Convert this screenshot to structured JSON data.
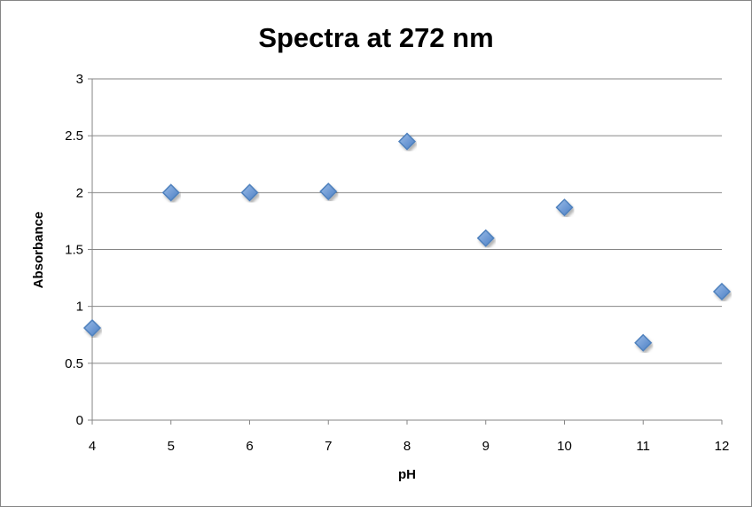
{
  "chart_data": {
    "type": "scatter",
    "title": "Spectra at 272 nm",
    "xlabel": "pH",
    "ylabel": "Absorbance",
    "xlim": [
      4,
      12
    ],
    "ylim": [
      0,
      3
    ],
    "xticks": [
      "4",
      "5",
      "6",
      "7",
      "8",
      "9",
      "10",
      "11",
      "12"
    ],
    "yticks": [
      "0",
      "0.5",
      "1",
      "1.5",
      "2",
      "2.5",
      "3"
    ],
    "grid": "horizontal",
    "legend": "none",
    "marker_color": "#4F81BD",
    "x": [
      4,
      5,
      6,
      7,
      8,
      9,
      10,
      11,
      12
    ],
    "y": [
      0.81,
      2.0,
      2.0,
      2.01,
      2.45,
      1.6,
      1.87,
      0.68,
      1.13
    ]
  }
}
